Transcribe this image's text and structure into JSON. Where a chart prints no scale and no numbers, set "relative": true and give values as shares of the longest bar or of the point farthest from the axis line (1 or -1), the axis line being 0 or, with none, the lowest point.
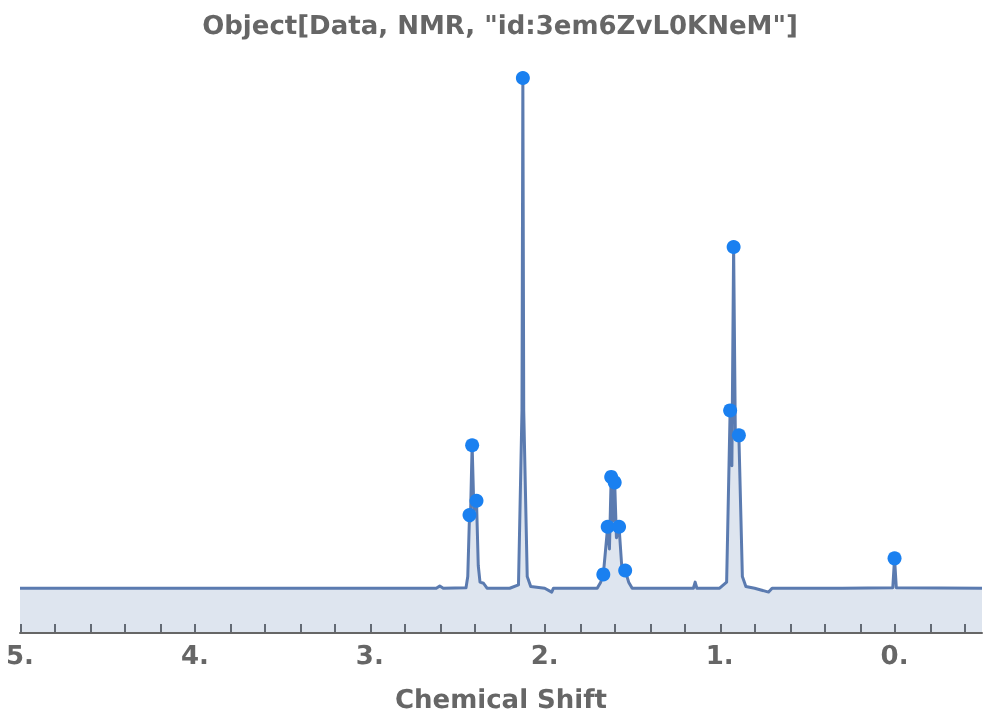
{
  "chart_data": {
    "type": "area",
    "title": "Object[Data, NMR, \"id:3em6ZvL0KNeM\"]",
    "xlabel": "Chemical Shift",
    "relative": true,
    "xlim": [
      5,
      -0.5
    ],
    "xticks": [
      {
        "value": 5,
        "label": "5."
      },
      {
        "value": 4.8,
        "label": null
      },
      {
        "value": 4.6,
        "label": null
      },
      {
        "value": 4.4,
        "label": null
      },
      {
        "value": 4.2,
        "label": null
      },
      {
        "value": 4,
        "label": "4."
      },
      {
        "value": 3.8,
        "label": null
      },
      {
        "value": 3.6,
        "label": null
      },
      {
        "value": 3.4,
        "label": null
      },
      {
        "value": 3.2,
        "label": null
      },
      {
        "value": 3,
        "label": "3."
      },
      {
        "value": 2.8,
        "label": null
      },
      {
        "value": 2.6,
        "label": null
      },
      {
        "value": 2.4,
        "label": null
      },
      {
        "value": 2.2,
        "label": null
      },
      {
        "value": 2,
        "label": "2."
      },
      {
        "value": 1.8,
        "label": null
      },
      {
        "value": 1.6,
        "label": null
      },
      {
        "value": 1.4,
        "label": null
      },
      {
        "value": 1.2,
        "label": null
      },
      {
        "value": 1,
        "label": "1."
      },
      {
        "value": 0.8,
        "label": null
      },
      {
        "value": 0.6,
        "label": null
      },
      {
        "value": 0.4,
        "label": null
      },
      {
        "value": 0.2,
        "label": null
      },
      {
        "value": 0,
        "label": "0."
      },
      {
        "value": -0.2,
        "label": null
      },
      {
        "value": -0.4,
        "label": null
      }
    ],
    "grid": false,
    "series": [
      {
        "color": "#5b7bb0",
        "marker": "none",
        "x": [
          5.0,
          2.62,
          2.6,
          2.58,
          2.45,
          2.44,
          2.43,
          2.425,
          2.415,
          2.405,
          2.39,
          2.38,
          2.37,
          2.35,
          2.33,
          2.2,
          2.15,
          2.13,
          2.125,
          2.12,
          2.1,
          2.08,
          2.0,
          1.96,
          1.95,
          1.7,
          1.68,
          1.665,
          1.64,
          1.63,
          1.62,
          1.61,
          1.6,
          1.59,
          1.575,
          1.56,
          1.54,
          1.52,
          1.5,
          1.3,
          1.15,
          1.14,
          1.13,
          1.0,
          0.96,
          0.94,
          0.93,
          0.92,
          0.91,
          0.89,
          0.87,
          0.85,
          0.8,
          0.72,
          0.7,
          0.3,
          0.01,
          0.0,
          -0.01,
          -0.5
        ],
        "values": [
          0.079,
          0.079,
          0.083,
          0.079,
          0.08,
          0.1,
          0.211,
          0.2,
          0.337,
          0.22,
          0.237,
          0.12,
          0.09,
          0.088,
          0.079,
          0.079,
          0.085,
          0.4,
          1.0,
          0.4,
          0.1,
          0.082,
          0.079,
          0.072,
          0.079,
          0.079,
          0.09,
          0.104,
          0.19,
          0.15,
          0.28,
          0.2,
          0.27,
          0.17,
          0.19,
          0.12,
          0.111,
          0.09,
          0.079,
          0.079,
          0.079,
          0.09,
          0.079,
          0.079,
          0.09,
          0.4,
          0.3,
          0.695,
          0.35,
          0.355,
          0.1,
          0.082,
          0.079,
          0.072,
          0.079,
          0.079,
          0.08,
          0.133,
          0.08,
          0.079
        ]
      },
      {
        "type": "scatter",
        "color": "#1a80f0",
        "marker": "circle",
        "x": [
          2.43,
          2.415,
          2.39,
          2.125,
          1.665,
          1.64,
          1.62,
          1.6,
          1.575,
          1.54,
          0.94,
          0.92,
          0.89,
          0.0
        ],
        "values": [
          0.211,
          0.337,
          0.237,
          1.0,
          0.104,
          0.19,
          0.28,
          0.27,
          0.19,
          0.111,
          0.4,
          0.695,
          0.355,
          0.133
        ]
      }
    ]
  }
}
